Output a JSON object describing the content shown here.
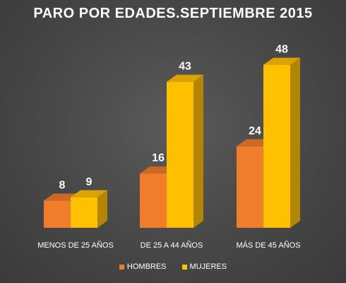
{
  "chart_data": {
    "type": "bar",
    "title": "PARO POR EDADES.SEPTIEMBRE 2015",
    "categories": [
      "MENOS DE 25 AÑOS",
      "DE 25 A 44 AÑOS",
      "MÁS DE 45 AÑOS"
    ],
    "series": [
      {
        "name": "HOMBRES",
        "values": [
          8,
          16,
          24
        ],
        "color": "#F07D2B"
      },
      {
        "name": "MUJERES",
        "values": [
          9,
          43,
          48
        ],
        "color": "#FFC000"
      }
    ],
    "ylim": [
      0,
      50
    ],
    "grid": false,
    "legend": "bottom",
    "data_labels": true
  }
}
